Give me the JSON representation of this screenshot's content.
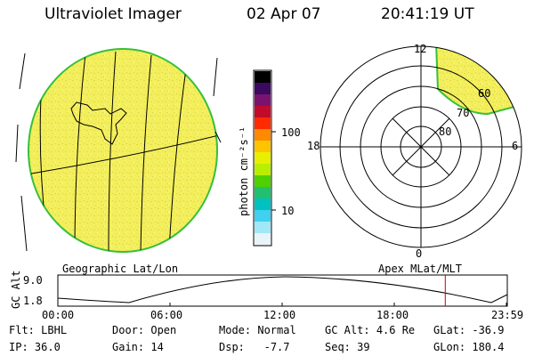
{
  "header": {
    "title": "Ultraviolet Imager",
    "date": "02 Apr 07",
    "time": "20:41:19 UT"
  },
  "colorbar": {
    "axis_label": "photon cm⁻²s⁻¹",
    "ticks": [
      "100",
      "10"
    ],
    "colors_top_to_bottom": [
      "#000000",
      "#3b0a5e",
      "#7a1370",
      "#c40a2a",
      "#ff2a00",
      "#ff8a00",
      "#ffc400",
      "#e8ef00",
      "#b8ef00",
      "#4fd000",
      "#20c070",
      "#00c0c0",
      "#40d0f0",
      "#a0e8f8",
      "#e8f4f8"
    ]
  },
  "left_panel": {
    "caption": "Geographic Lat/Lon",
    "disk_color": "#f2ef5a",
    "rim_color": "#36c03a"
  },
  "right_panel": {
    "caption": "Apex MLat/MLT",
    "mlt_labels": {
      "top": "12",
      "left": "18",
      "right": "6",
      "bottom": "0"
    },
    "lat_labels": [
      "60",
      "70",
      "80"
    ]
  },
  "altitude_plot": {
    "ylabel": "GC Alt",
    "yticks": [
      "9.0",
      "1.8"
    ],
    "xticks": [
      "00:00",
      "06:00",
      "12:00",
      "18:00",
      "23:59"
    ],
    "current_time_fraction": 0.862,
    "marker_color": "#cc0000"
  },
  "status": {
    "row1": [
      {
        "label": "Flt:",
        "value": "LBHL"
      },
      {
        "label": "Door:",
        "value": "Open"
      },
      {
        "label": "Mode:",
        "value": "Normal"
      },
      {
        "label": "GC Alt:",
        "value": "4.6 Re"
      },
      {
        "label": "GLat:",
        "value": "-36.9"
      }
    ],
    "row2": [
      {
        "label": "IP:",
        "value": "36.0"
      },
      {
        "label": "Gain:",
        "value": "14"
      },
      {
        "label": "Dsp:",
        "value": "  -7.7"
      },
      {
        "label": "Seq:",
        "value": "39"
      },
      {
        "label": "GLon:",
        "value": "180.4"
      }
    ]
  }
}
